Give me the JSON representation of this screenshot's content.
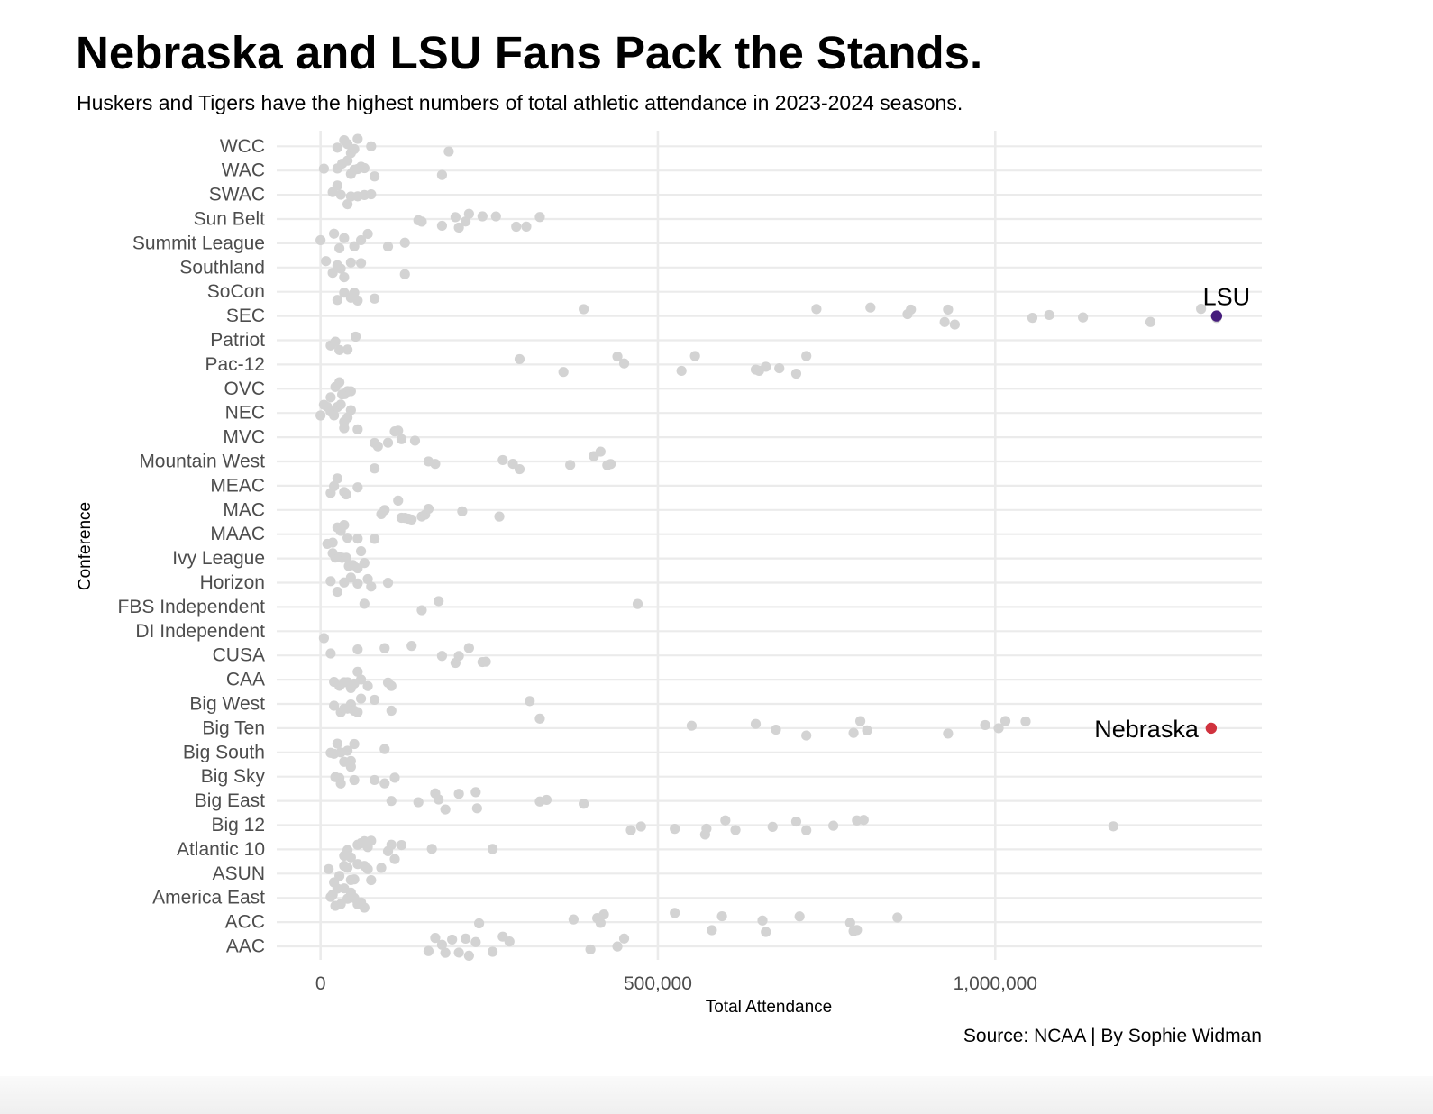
{
  "header": {
    "title": "Nebraska and LSU Fans Pack the Stands.",
    "subtitle": "Huskers and Tigers have the highest numbers of total athletic attendance in 2023-2024 seasons."
  },
  "caption": "Source: NCAA | By Sophie Widman",
  "colors": {
    "point": "#d3d3d3",
    "grid": "#ebebeb",
    "lsu": "#461d7c",
    "nebraska": "#d0323e",
    "tick_text": "#4d4d4d"
  },
  "chart_data": {
    "type": "scatter",
    "title": "Nebraska and LSU Fans Pack the Stands.",
    "subtitle": "Huskers and Tigers have the highest numbers of total athletic attendance in 2023-2024 seasons.",
    "xlabel": "Total Attendance",
    "ylabel": "Conference",
    "xlim": [
      -65000,
      1395000
    ],
    "xticks": [
      0,
      500000,
      1000000
    ],
    "xtick_labels": [
      "0",
      "500,000",
      "1,000,000"
    ],
    "grid": true,
    "categories": [
      "AAC",
      "ACC",
      "America East",
      "ASUN",
      "Atlantic 10",
      "Big 12",
      "Big East",
      "Big Sky",
      "Big South",
      "Big Ten",
      "Big West",
      "CAA",
      "CUSA",
      "DI Independent",
      "FBS Independent",
      "Horizon",
      "Ivy League",
      "MAAC",
      "MAC",
      "MEAC",
      "Mountain West",
      "MVC",
      "NEC",
      "OVC",
      "Pac-12",
      "Patriot",
      "SEC",
      "SoCon",
      "Southland",
      "Summit League",
      "Sun Belt",
      "SWAC",
      "WAC",
      "WCC"
    ],
    "series": [
      {
        "category": "AAC",
        "values": [
          160000,
          170000,
          180000,
          185000,
          195000,
          205000,
          215000,
          220000,
          230000,
          255000,
          270000,
          280000,
          400000,
          440000,
          450000
        ]
      },
      {
        "category": "ACC",
        "values": [
          235000,
          375000,
          410000,
          415000,
          420000,
          525000,
          580000,
          595000,
          655000,
          660000,
          710000,
          785000,
          790000,
          795000,
          855000
        ]
      },
      {
        "category": "America East",
        "values": [
          15000,
          18000,
          22000,
          25000,
          30000,
          35000,
          40000,
          45000,
          50000,
          55000,
          60000,
          65000
        ]
      },
      {
        "category": "ASUN",
        "values": [
          12000,
          20000,
          28000,
          35000,
          40000,
          45000,
          50000,
          55000,
          65000,
          70000,
          75000,
          90000
        ]
      },
      {
        "category": "Atlantic 10",
        "values": [
          35000,
          40000,
          45000,
          55000,
          60000,
          65000,
          70000,
          75000,
          100000,
          105000,
          110000,
          120000,
          165000,
          255000
        ]
      },
      {
        "category": "Big 12",
        "values": [
          460000,
          475000,
          525000,
          570000,
          572000,
          600000,
          615000,
          670000,
          705000,
          720000,
          760000,
          795000,
          805000,
          1175000
        ]
      },
      {
        "category": "Big East",
        "values": [
          105000,
          145000,
          170000,
          175000,
          185000,
          205000,
          230000,
          232000,
          325000,
          335000,
          390000
        ]
      },
      {
        "category": "Big Sky",
        "values": [
          22000,
          28000,
          30000,
          45000,
          50000,
          80000,
          95000,
          110000
        ]
      },
      {
        "category": "Big South",
        "values": [
          15000,
          20000,
          25000,
          30000,
          35000,
          40000,
          45000,
          50000,
          95000
        ]
      },
      {
        "category": "Big Ten",
        "values": [
          325000,
          550000,
          645000,
          675000,
          720000,
          790000,
          800000,
          810000,
          930000,
          985000,
          1005000,
          1015000,
          1045000
        ]
      },
      {
        "category": "Big West",
        "values": [
          20000,
          30000,
          35000,
          40000,
          45000,
          50000,
          55000,
          60000,
          80000,
          105000,
          310000
        ]
      },
      {
        "category": "CAA",
        "values": [
          20000,
          28000,
          35000,
          40000,
          45000,
          50000,
          55000,
          60000,
          70000,
          100000,
          105000
        ]
      },
      {
        "category": "CUSA",
        "values": [
          15000,
          55000,
          95000,
          135000,
          180000,
          200000,
          205000,
          220000,
          240000,
          245000
        ]
      },
      {
        "category": "DI Independent",
        "values": [
          5000
        ]
      },
      {
        "category": "FBS Independent",
        "values": [
          65000,
          150000,
          175000,
          470000
        ]
      },
      {
        "category": "Horizon",
        "values": [
          15000,
          25000,
          35000,
          45000,
          55000,
          70000,
          75000,
          100000
        ]
      },
      {
        "category": "Ivy League",
        "values": [
          18000,
          22000,
          28000,
          32000,
          38000,
          42000,
          48000,
          55000,
          60000,
          65000
        ]
      },
      {
        "category": "MAAC",
        "values": [
          10000,
          18000,
          25000,
          30000,
          35000,
          40000,
          55000,
          80000
        ]
      },
      {
        "category": "MAC",
        "values": [
          90000,
          95000,
          115000,
          120000,
          125000,
          130000,
          135000,
          150000,
          155000,
          160000,
          210000,
          265000
        ]
      },
      {
        "category": "MEAC",
        "values": [
          15000,
          20000,
          25000,
          35000,
          38000,
          55000
        ]
      },
      {
        "category": "Mountain West",
        "values": [
          80000,
          160000,
          170000,
          270000,
          285000,
          295000,
          370000,
          405000,
          415000,
          425000,
          430000
        ]
      },
      {
        "category": "MVC",
        "values": [
          35000,
          55000,
          80000,
          85000,
          100000,
          110000,
          115000,
          120000,
          140000
        ]
      },
      {
        "category": "NEC",
        "values": [
          0,
          5000,
          10000,
          15000,
          20000,
          25000,
          30000,
          35000,
          40000,
          45000
        ]
      },
      {
        "category": "OVC",
        "values": [
          15000,
          22000,
          28000,
          32000,
          36000,
          40000,
          45000
        ]
      },
      {
        "category": "Pac-12",
        "values": [
          295000,
          360000,
          440000,
          450000,
          535000,
          555000,
          645000,
          650000,
          660000,
          680000,
          705000,
          720000
        ]
      },
      {
        "category": "Patriot",
        "values": [
          15000,
          22000,
          28000,
          40000,
          52000
        ]
      },
      {
        "category": "SEC",
        "values": [
          390000,
          735000,
          815000,
          870000,
          875000,
          925000,
          930000,
          940000,
          1055000,
          1080000,
          1130000,
          1230000,
          1305000,
          1328000
        ]
      },
      {
        "category": "SoCon",
        "values": [
          25000,
          35000,
          45000,
          50000,
          55000,
          80000
        ]
      },
      {
        "category": "Southland",
        "values": [
          8000,
          18000,
          25000,
          30000,
          35000,
          45000,
          60000,
          125000
        ]
      },
      {
        "category": "Summit League",
        "values": [
          0,
          20000,
          28000,
          35000,
          50000,
          60000,
          70000,
          100000,
          125000
        ]
      },
      {
        "category": "Sun Belt",
        "values": [
          145000,
          150000,
          180000,
          200000,
          205000,
          215000,
          220000,
          240000,
          260000,
          290000,
          305000,
          325000
        ]
      },
      {
        "category": "SWAC",
        "values": [
          18000,
          25000,
          30000,
          40000,
          45000,
          55000,
          65000,
          75000
        ]
      },
      {
        "category": "WAC",
        "values": [
          5000,
          25000,
          32000,
          40000,
          45000,
          50000,
          55000,
          60000,
          65000,
          80000,
          180000
        ]
      },
      {
        "category": "WCC",
        "values": [
          25000,
          35000,
          40000,
          45000,
          50000,
          55000,
          75000,
          190000
        ]
      }
    ],
    "highlights": [
      {
        "label": "LSU",
        "category": "SEC",
        "value": 1328000,
        "color": "#461d7c"
      },
      {
        "label": "Nebraska",
        "category": "Big Ten",
        "value": 1320000,
        "color": "#d0323e"
      }
    ]
  }
}
